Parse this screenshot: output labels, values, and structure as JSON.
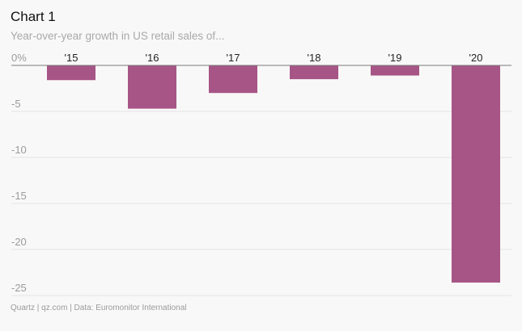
{
  "title": "Chart 1",
  "subtitle": "Year-over-year growth in US retail sales of...",
  "footer": "Quartz | qz.com | Data: Euromonitor International",
  "colors": {
    "bar": "#a65586",
    "grid": "#e4e4e4",
    "axis": "#7a7a7a",
    "tick_text": "#9b9b9b",
    "category_text": "#222222",
    "background": "#f9f8f8"
  },
  "chart_data": {
    "type": "bar",
    "title": "Chart 1",
    "subtitle": "Year-over-year growth in US retail sales of...",
    "categories": [
      "'15",
      "'16",
      "'17",
      "'18",
      "'19",
      "'20"
    ],
    "values": [
      -1.6,
      -4.7,
      -3.0,
      -1.5,
      -1.1,
      -23.6
    ],
    "y_ticks": [
      0,
      -5,
      -10,
      -15,
      -20,
      -25
    ],
    "y_tick_labels": [
      "0%",
      "-5",
      "-10",
      "-15",
      "-20",
      "-25"
    ],
    "ylim": [
      -25,
      0
    ],
    "grid": true,
    "category_labels_position": "top"
  }
}
